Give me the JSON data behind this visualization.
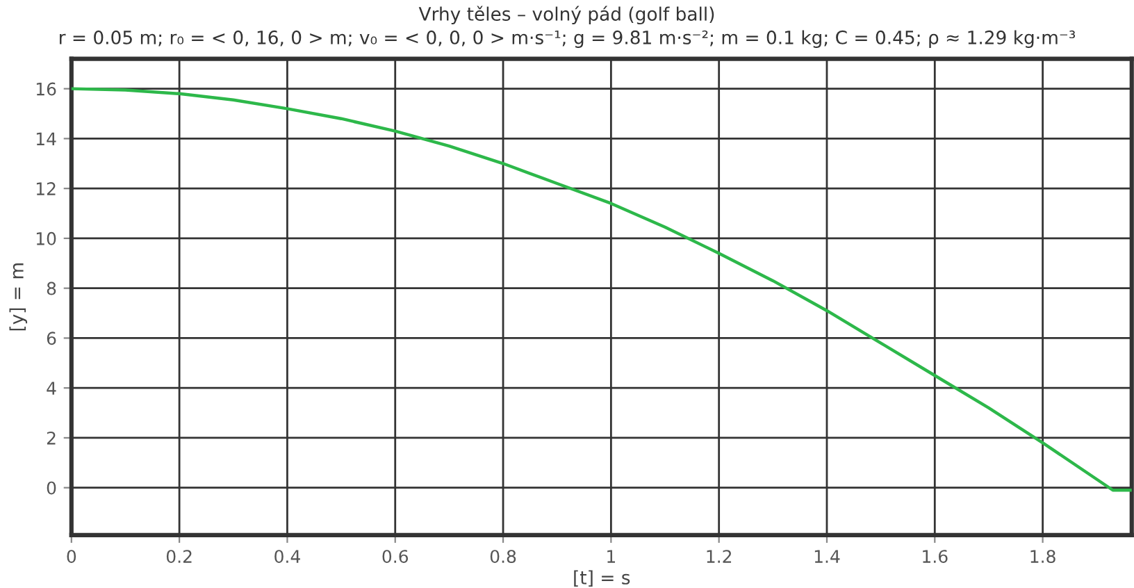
{
  "chart_data": {
    "type": "line",
    "title": "Vrhy těles – volný pád (golf ball)",
    "subtitle": "r = 0.05 m; r₀ = < 0, 16, 0 > m; v₀ = < 0, 0, 0 > m·s⁻¹; g = 9.81 m·s⁻²; m = 0.1 kg; C = 0.45; ρ ≈ 1.29 kg·m⁻³",
    "xlabel": "[t] = s",
    "ylabel": "[y] = m",
    "x": [
      0,
      0.1,
      0.2,
      0.3,
      0.4,
      0.5,
      0.6,
      0.7,
      0.8,
      0.9,
      1.0,
      1.1,
      1.2,
      1.3,
      1.4,
      1.5,
      1.6,
      1.7,
      1.8,
      1.93,
      1.965
    ],
    "series": [
      {
        "color": "#2db84a",
        "values": [
          16,
          15.95,
          15.8,
          15.55,
          15.2,
          14.8,
          14.3,
          13.7,
          13.0,
          12.2,
          11.4,
          10.45,
          9.4,
          8.3,
          7.1,
          5.8,
          4.5,
          3.2,
          1.8,
          -0.1,
          -0.1
        ]
      }
    ],
    "xlim": [
      0,
      1.965
    ],
    "ylim": [
      -1.9,
      17.2
    ],
    "xticks": [
      0,
      0.2,
      0.4,
      0.6,
      0.8,
      1,
      1.2,
      1.4,
      1.6,
      1.8
    ],
    "yticks": [
      0,
      2,
      4,
      6,
      8,
      10,
      12,
      14,
      16
    ],
    "grid": true,
    "legend": false,
    "marker": "none",
    "line_style": "solid"
  }
}
